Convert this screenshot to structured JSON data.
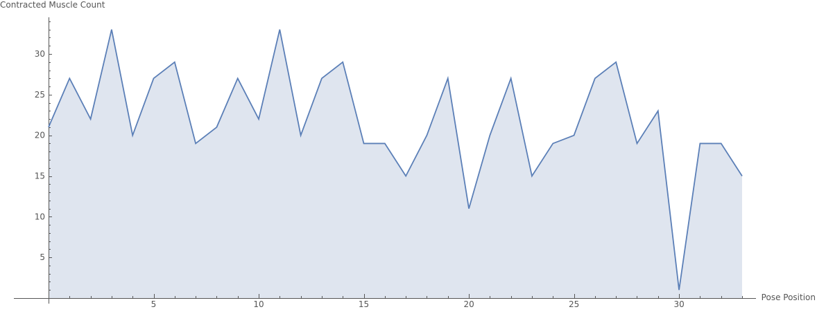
{
  "chart_data": {
    "type": "area",
    "title": "",
    "xlabel": "Pose Position",
    "ylabel": "Contracted Muscle Count",
    "xlim": [
      0,
      33
    ],
    "ylim": [
      0,
      34
    ],
    "x_ticks": [
      5,
      10,
      15,
      20,
      25,
      30
    ],
    "y_ticks": [
      5,
      10,
      15,
      20,
      25,
      30
    ],
    "grid": false,
    "legend": "none",
    "series": [
      {
        "name": "Contracted Muscle Count",
        "x": [
          0,
          1,
          2,
          3,
          4,
          5,
          6,
          7,
          8,
          9,
          10,
          11,
          12,
          13,
          14,
          15,
          16,
          17,
          18,
          19,
          20,
          21,
          22,
          23,
          24,
          25,
          26,
          27,
          28,
          29,
          30,
          31,
          32,
          33
        ],
        "values": [
          21,
          27,
          22,
          33,
          20,
          27,
          29,
          19,
          21,
          27,
          22,
          33,
          20,
          27,
          29,
          19,
          19,
          15,
          20,
          27,
          11,
          20,
          27,
          15,
          19,
          20,
          27,
          29,
          19,
          23,
          1,
          19,
          19,
          15
        ]
      }
    ],
    "colors": {
      "line": "#5b7fb7",
      "fill": "#dfe5ef",
      "axis": "#555555"
    }
  }
}
